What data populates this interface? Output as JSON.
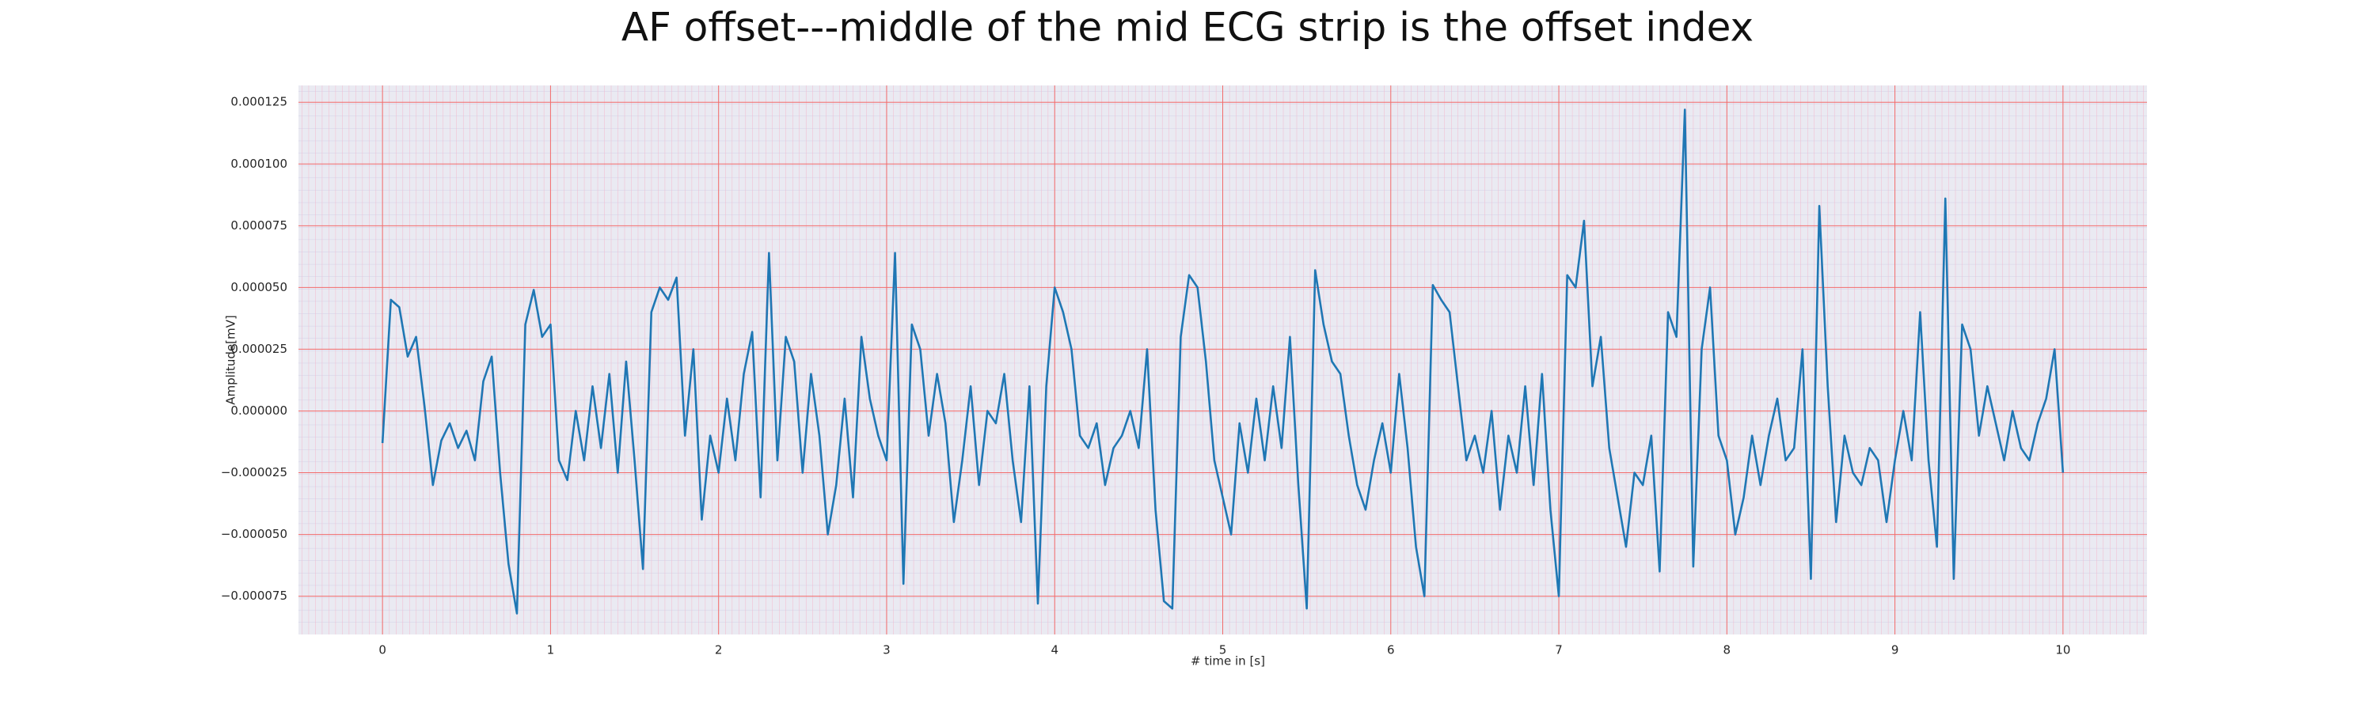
{
  "chart_data": {
    "type": "line",
    "title": "AF offset---middle of the mid ECG strip is the offset index",
    "xlabel": "# time in [s]",
    "ylabel": "Amplitude[mV]",
    "color": "#1f77b4",
    "grid": true,
    "xlim": [
      -0.5,
      10.5
    ],
    "ylim": [
      -9.05e-05,
      0.0001318
    ],
    "xticks": [
      0,
      1,
      2,
      3,
      4,
      5,
      6,
      7,
      8,
      9,
      10
    ],
    "yticks": [
      0.000125,
      {
        "value": 0.0001,
        "label": "0.000100"
      },
      7.5e-05,
      {
        "value": 5e-05,
        "label": "0.000050"
      },
      2.5e-05,
      {
        "value": 0,
        "label": "0.000000"
      },
      {
        "value": -2.5e-05,
        "label": "−0.000025"
      },
      {
        "value": -5e-05,
        "label": "−0.000050"
      },
      {
        "value": -7.5e-05,
        "label": "−0.000075"
      }
    ],
    "x": [
      0,
      0.05,
      0.1,
      0.15,
      0.2,
      0.25,
      0.3,
      0.35,
      0.4,
      0.45,
      0.5,
      0.55,
      0.6,
      0.65,
      0.7,
      0.75,
      0.8,
      0.85,
      0.9,
      0.95,
      1,
      1.05,
      1.1,
      1.15,
      1.2,
      1.25,
      1.3,
      1.35,
      1.4,
      1.45,
      1.5,
      1.55,
      1.6,
      1.65,
      1.7,
      1.75,
      1.8,
      1.85,
      1.9,
      1.95,
      2,
      2.05,
      2.1,
      2.15,
      2.2,
      2.25,
      2.3,
      2.35,
      2.4,
      2.45,
      2.5,
      2.55,
      2.6,
      2.65,
      2.7,
      2.75,
      2.8,
      2.85,
      2.9,
      2.95,
      3,
      3.05,
      3.1,
      3.15,
      3.2,
      3.25,
      3.3,
      3.35,
      3.4,
      3.45,
      3.5,
      3.55,
      3.6,
      3.65,
      3.7,
      3.75,
      3.8,
      3.85,
      3.9,
      3.95,
      4,
      4.05,
      4.1,
      4.15,
      4.2,
      4.25,
      4.3,
      4.35,
      4.4,
      4.45,
      4.5,
      4.55,
      4.6,
      4.65,
      4.7,
      4.75,
      4.8,
      4.85,
      4.9,
      4.95,
      5,
      5.05,
      5.1,
      5.15,
      5.2,
      5.25,
      5.3,
      5.35,
      5.4,
      5.45,
      5.5,
      5.55,
      5.6,
      5.65,
      5.7,
      5.75,
      5.8,
      5.85,
      5.9,
      5.95,
      6,
      6.05,
      6.1,
      6.15,
      6.2,
      6.25,
      6.3,
      6.35,
      6.4,
      6.45,
      6.5,
      6.55,
      6.6,
      6.65,
      6.7,
      6.75,
      6.8,
      6.85,
      6.9,
      6.95,
      7,
      7.05,
      7.1,
      7.15,
      7.2,
      7.25,
      7.3,
      7.35,
      7.4,
      7.45,
      7.5,
      7.55,
      7.6,
      7.65,
      7.7,
      7.75,
      7.8,
      7.85,
      7.9,
      7.95,
      8,
      8.05,
      8.1,
      8.15,
      8.2,
      8.25,
      8.3,
      8.35,
      8.4,
      8.45,
      8.5,
      8.55,
      8.6,
      8.65,
      8.7,
      8.75,
      8.8,
      8.85,
      8.9,
      8.95,
      9,
      9.05,
      9.1,
      9.15,
      9.2,
      9.25,
      9.3,
      9.35,
      9.4,
      9.45,
      9.5,
      9.55,
      9.6,
      9.65,
      9.7,
      9.75,
      9.8,
      9.85,
      9.9,
      9.95,
      10
    ],
    "values": [
      -1.3e-05,
      4.5e-05,
      4.2e-05,
      2.2e-05,
      3e-05,
      2e-06,
      -3e-05,
      -1.2e-05,
      -5e-06,
      -1.5e-05,
      -8e-06,
      -2e-05,
      1.2e-05,
      2.2e-05,
      -2.5e-05,
      -6.2e-05,
      -8.2e-05,
      3.5e-05,
      4.9e-05,
      3e-05,
      3.5e-05,
      -2e-05,
      -2.8e-05,
      0,
      -2e-05,
      1e-05,
      -1.5e-05,
      1.5e-05,
      -2.5e-05,
      2e-05,
      -2e-05,
      -6.4e-05,
      4e-05,
      5e-05,
      4.5e-05,
      5.4e-05,
      -1e-05,
      2.5e-05,
      -4.4e-05,
      -1e-05,
      -2.5e-05,
      5e-06,
      -2e-05,
      1.5e-05,
      3.2e-05,
      -3.5e-05,
      6.4e-05,
      -2e-05,
      3e-05,
      2e-05,
      -2.5e-05,
      1.5e-05,
      -1e-05,
      -5e-05,
      -3e-05,
      5e-06,
      -3.5e-05,
      3e-05,
      5e-06,
      -1e-05,
      -2e-05,
      6.4e-05,
      -7e-05,
      3.5e-05,
      2.5e-05,
      -1e-05,
      1.5e-05,
      -5e-06,
      -4.5e-05,
      -2e-05,
      1e-05,
      -3e-05,
      0,
      -5e-06,
      1.5e-05,
      -2e-05,
      -4.5e-05,
      1e-05,
      -7.8e-05,
      1e-05,
      5e-05,
      4e-05,
      2.5e-05,
      -1e-05,
      -1.5e-05,
      -5e-06,
      -3e-05,
      -1.5e-05,
      -1e-05,
      0,
      -1.5e-05,
      2.5e-05,
      -4e-05,
      -7.7e-05,
      -8e-05,
      3e-05,
      5.5e-05,
      5e-05,
      2e-05,
      -2e-05,
      -3.5e-05,
      -5e-05,
      -5e-06,
      -2.5e-05,
      5e-06,
      -2e-05,
      1e-05,
      -1.5e-05,
      3e-05,
      -3e-05,
      -8e-05,
      5.7e-05,
      3.5e-05,
      2e-05,
      1.5e-05,
      -1e-05,
      -3e-05,
      -4e-05,
      -2e-05,
      -5e-06,
      -2.5e-05,
      1.5e-05,
      -1.5e-05,
      -5.5e-05,
      -7.5e-05,
      5.1e-05,
      4.5e-05,
      4e-05,
      1e-05,
      -2e-05,
      -1e-05,
      -2.5e-05,
      0,
      -4e-05,
      -1e-05,
      -2.5e-05,
      1e-05,
      -3e-05,
      1.5e-05,
      -4e-05,
      -7.5e-05,
      5.5e-05,
      5e-05,
      7.7e-05,
      1e-05,
      3e-05,
      -1.5e-05,
      -3.5e-05,
      -5.5e-05,
      -2.5e-05,
      -3e-05,
      -1e-05,
      -6.5e-05,
      4e-05,
      3e-05,
      0.000122,
      -6.3e-05,
      2.5e-05,
      5e-05,
      -1e-05,
      -2e-05,
      -5e-05,
      -3.5e-05,
      -1e-05,
      -3e-05,
      -1e-05,
      5e-06,
      -2e-05,
      -1.5e-05,
      2.5e-05,
      -6.8e-05,
      8.3e-05,
      1e-05,
      -4.5e-05,
      -1e-05,
      -2.5e-05,
      -3e-05,
      -1.5e-05,
      -2e-05,
      -4.5e-05,
      -2e-05,
      0,
      -2e-05,
      4e-05,
      -2e-05,
      -5.5e-05,
      8.6e-05,
      -6.8e-05,
      3.5e-05,
      2.5e-05,
      -1e-05,
      1e-05,
      -5e-06,
      -2e-05,
      0,
      -1.5e-05,
      -2e-05,
      -5e-06,
      5e-06,
      2.5e-05,
      -2.5e-05
    ]
  }
}
